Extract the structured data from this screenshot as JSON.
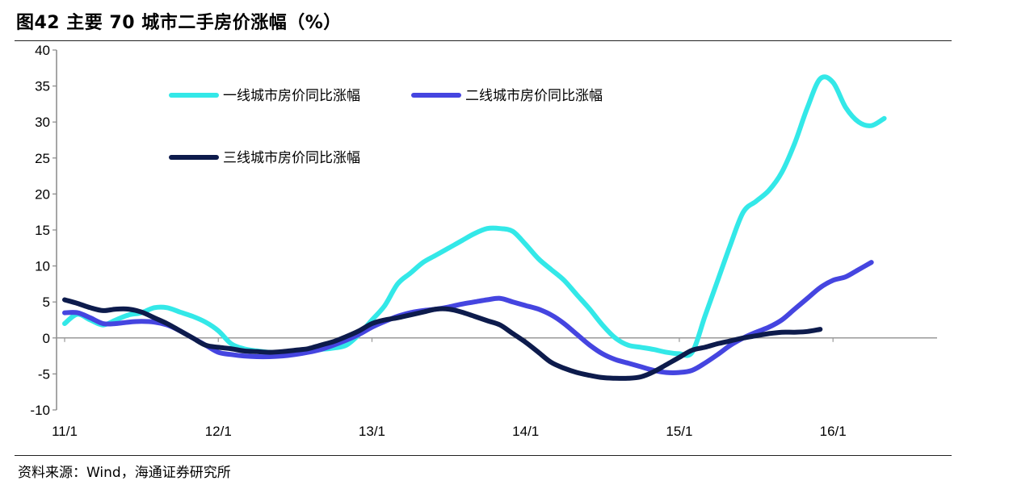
{
  "title": "图42 主要 70 城市二手房价涨幅（%）",
  "source": "资料来源：Wind，海通证券研究所",
  "chart_data": {
    "type": "line",
    "title": "图42 主要 70 城市二手房价涨幅（%）",
    "xlabel": "",
    "ylabel": "",
    "ylim": [
      -10,
      40
    ],
    "yticks": [
      40,
      35,
      30,
      25,
      20,
      15,
      10,
      5,
      0,
      -5,
      -10
    ],
    "xlim": [
      0,
      68
    ],
    "x_tick_labels": [
      {
        "x": 0,
        "label": "11/1"
      },
      {
        "x": 12,
        "label": "12/1"
      },
      {
        "x": 24,
        "label": "13/1"
      },
      {
        "x": 36,
        "label": "14/1"
      },
      {
        "x": 48,
        "label": "15/1"
      },
      {
        "x": 60,
        "label": "16/1"
      }
    ],
    "grid": false,
    "legend_position": "top-left",
    "series": [
      {
        "name": "一线城市房价同比涨幅",
        "color": "#33E8E8",
        "points": [
          [
            0,
            2
          ],
          [
            1,
            3.3
          ],
          [
            2,
            2.5
          ],
          [
            3,
            1.8
          ],
          [
            4,
            2.5
          ],
          [
            5,
            3.2
          ],
          [
            6,
            3.5
          ],
          [
            7,
            4.2
          ],
          [
            8,
            4.2
          ],
          [
            9,
            3.6
          ],
          [
            10,
            3
          ],
          [
            11,
            2.2
          ],
          [
            12,
            1
          ],
          [
            13,
            -0.8
          ],
          [
            14,
            -1.5
          ],
          [
            15,
            -1.8
          ],
          [
            16,
            -2
          ],
          [
            17,
            -2
          ],
          [
            18,
            -1.9
          ],
          [
            19,
            -1.8
          ],
          [
            20,
            -1.6
          ],
          [
            21,
            -1.4
          ],
          [
            22,
            -1
          ],
          [
            23,
            0.5
          ],
          [
            24,
            2.5
          ],
          [
            25,
            4.5
          ],
          [
            26,
            7.5
          ],
          [
            27,
            9
          ],
          [
            28,
            10.5
          ],
          [
            29,
            11.5
          ],
          [
            30,
            12.5
          ],
          [
            31,
            13.5
          ],
          [
            32,
            14.5
          ],
          [
            33,
            15.2
          ],
          [
            34,
            15.2
          ],
          [
            35,
            14.8
          ],
          [
            36,
            13
          ],
          [
            37,
            11
          ],
          [
            38,
            9.5
          ],
          [
            39,
            8
          ],
          [
            40,
            6
          ],
          [
            41,
            4
          ],
          [
            42,
            1.8
          ],
          [
            43,
            0
          ],
          [
            44,
            -1
          ],
          [
            45,
            -1.3
          ],
          [
            46,
            -1.6
          ],
          [
            47,
            -2
          ],
          [
            48,
            -2.2
          ],
          [
            49,
            -2
          ],
          [
            50,
            3
          ],
          [
            51,
            8
          ],
          [
            52,
            13
          ],
          [
            53,
            17.5
          ],
          [
            54,
            19
          ],
          [
            55,
            20.5
          ],
          [
            56,
            23
          ],
          [
            57,
            27
          ],
          [
            58,
            32
          ],
          [
            59,
            36
          ],
          [
            60,
            35.5
          ],
          [
            61,
            32
          ],
          [
            62,
            30
          ],
          [
            63,
            29.5
          ],
          [
            64,
            30.5
          ]
        ]
      },
      {
        "name": "二线城市房价同比涨幅",
        "color": "#4545E0",
        "points": [
          [
            0,
            3.5
          ],
          [
            1,
            3.5
          ],
          [
            2,
            2.8
          ],
          [
            3,
            2
          ],
          [
            4,
            2
          ],
          [
            5,
            2.2
          ],
          [
            6,
            2.3
          ],
          [
            7,
            2.2
          ],
          [
            8,
            1.8
          ],
          [
            9,
            1
          ],
          [
            10,
            0
          ],
          [
            11,
            -1
          ],
          [
            12,
            -2
          ],
          [
            13,
            -2.3
          ],
          [
            14,
            -2.5
          ],
          [
            15,
            -2.6
          ],
          [
            16,
            -2.6
          ],
          [
            17,
            -2.5
          ],
          [
            18,
            -2.3
          ],
          [
            19,
            -2
          ],
          [
            20,
            -1.6
          ],
          [
            21,
            -1
          ],
          [
            22,
            -0.3
          ],
          [
            23,
            0.5
          ],
          [
            24,
            1.5
          ],
          [
            25,
            2.3
          ],
          [
            26,
            3
          ],
          [
            27,
            3.5
          ],
          [
            28,
            3.8
          ],
          [
            29,
            4
          ],
          [
            30,
            4.3
          ],
          [
            31,
            4.7
          ],
          [
            32,
            5
          ],
          [
            33,
            5.3
          ],
          [
            34,
            5.5
          ],
          [
            35,
            5
          ],
          [
            36,
            4.5
          ],
          [
            37,
            4
          ],
          [
            38,
            3.2
          ],
          [
            39,
            2
          ],
          [
            40,
            0.5
          ],
          [
            41,
            -1
          ],
          [
            42,
            -2.2
          ],
          [
            43,
            -3
          ],
          [
            44,
            -3.5
          ],
          [
            45,
            -4
          ],
          [
            46,
            -4.5
          ],
          [
            47,
            -4.8
          ],
          [
            48,
            -4.8
          ],
          [
            49,
            -4.5
          ],
          [
            50,
            -3.5
          ],
          [
            51,
            -2.3
          ],
          [
            52,
            -1
          ],
          [
            53,
            0
          ],
          [
            54,
            0.8
          ],
          [
            55,
            1.5
          ],
          [
            56,
            2.5
          ],
          [
            57,
            4
          ],
          [
            58,
            5.5
          ],
          [
            59,
            7
          ],
          [
            60,
            8
          ],
          [
            61,
            8.5
          ],
          [
            62,
            9.5
          ],
          [
            63,
            10.5
          ]
        ]
      },
      {
        "name": "三线城市房价同比涨幅",
        "color": "#0D1B4C",
        "points": [
          [
            0,
            5.3
          ],
          [
            1,
            4.8
          ],
          [
            2,
            4.2
          ],
          [
            3,
            3.8
          ],
          [
            4,
            4
          ],
          [
            5,
            4
          ],
          [
            6,
            3.6
          ],
          [
            7,
            2.8
          ],
          [
            8,
            2
          ],
          [
            9,
            1
          ],
          [
            10,
            0
          ],
          [
            11,
            -1
          ],
          [
            12,
            -1.3
          ],
          [
            13,
            -1.5
          ],
          [
            14,
            -1.8
          ],
          [
            15,
            -1.9
          ],
          [
            16,
            -2
          ],
          [
            17,
            -1.9
          ],
          [
            18,
            -1.7
          ],
          [
            19,
            -1.5
          ],
          [
            20,
            -1
          ],
          [
            21,
            -0.5
          ],
          [
            22,
            0.2
          ],
          [
            23,
            1
          ],
          [
            24,
            2
          ],
          [
            25,
            2.5
          ],
          [
            26,
            2.8
          ],
          [
            27,
            3.2
          ],
          [
            28,
            3.6
          ],
          [
            29,
            4
          ],
          [
            30,
            4
          ],
          [
            31,
            3.6
          ],
          [
            32,
            3
          ],
          [
            33,
            2.4
          ],
          [
            34,
            1.8
          ],
          [
            35,
            0.6
          ],
          [
            36,
            -0.6
          ],
          [
            37,
            -2
          ],
          [
            38,
            -3.4
          ],
          [
            39,
            -4.2
          ],
          [
            40,
            -4.8
          ],
          [
            41,
            -5.2
          ],
          [
            42,
            -5.5
          ],
          [
            43,
            -5.6
          ],
          [
            44,
            -5.6
          ],
          [
            45,
            -5.4
          ],
          [
            46,
            -4.7
          ],
          [
            47,
            -3.7
          ],
          [
            48,
            -2.7
          ],
          [
            49,
            -1.7
          ],
          [
            50,
            -1.3
          ],
          [
            51,
            -0.8
          ],
          [
            52,
            -0.4
          ],
          [
            53,
            0
          ],
          [
            54,
            0.3
          ],
          [
            55,
            0.6
          ],
          [
            56,
            0.8
          ],
          [
            57,
            0.8
          ],
          [
            58,
            0.9
          ],
          [
            59,
            1.2
          ]
        ]
      }
    ]
  }
}
